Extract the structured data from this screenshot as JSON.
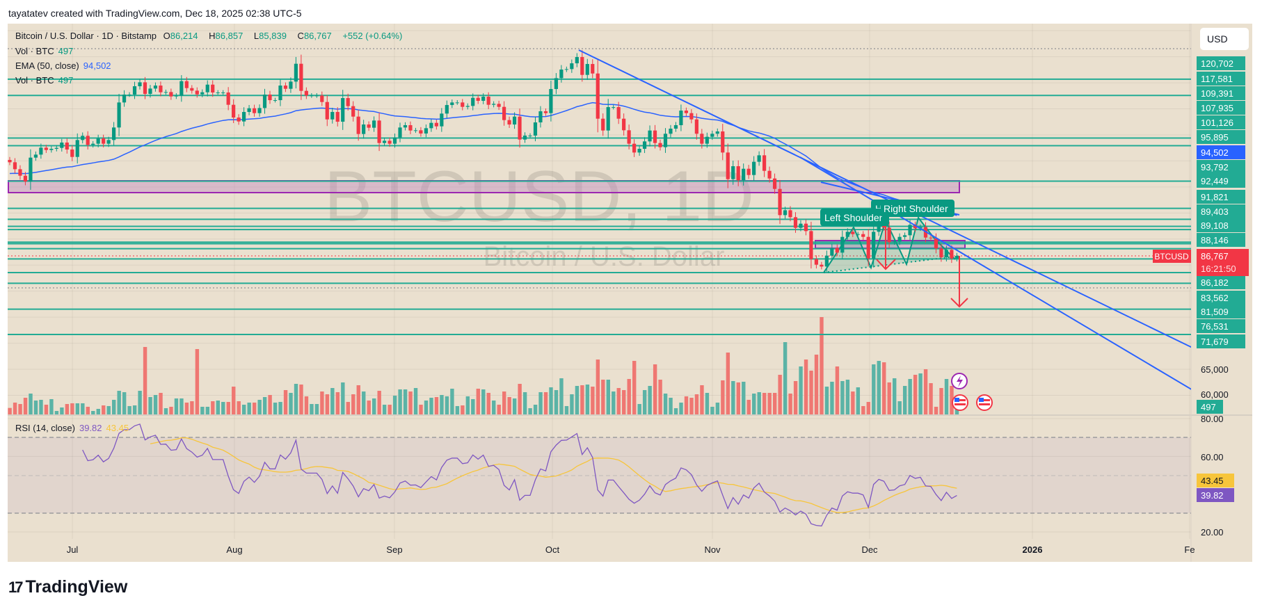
{
  "header": {
    "attribution": "tayatatev created with TradingView.com, Dec 18, 2025 02:38 UTC-5"
  },
  "legend": {
    "symbol": "Bitcoin / U.S. Dollar · 1D · Bitstamp",
    "open_label": "O",
    "open": "86,214",
    "high_label": "H",
    "high": "86,857",
    "low_label": "L",
    "low": "85,839",
    "close_label": "C",
    "close": "86,767",
    "change": "+552 (+0.64%)",
    "vol_label": "Vol · BTC",
    "vol_value": "497",
    "ema_label": "EMA (50, close)",
    "ema_value": "94,502",
    "vol2_label": "Vol · BTC",
    "vol2_value": "497",
    "rsi_label": "RSI (14, close)",
    "rsi_value": "39.82",
    "rsi_ma_value": "43.45"
  },
  "currency_button": "USD",
  "watermark": {
    "symbol": "BTCUSD, 1D",
    "name": "Bitcoin / U.S. Dollar"
  },
  "symbol_tag": "BTCUSD",
  "countdown": "16:21:50",
  "colors": {
    "background": "#eae0cf",
    "up": "#089981",
    "down": "#f23645",
    "level_line": "#22ab94",
    "ema": "#2962ff",
    "trendline": "#2962ff",
    "zone": "#9c27b0",
    "rsi": "#7e57c2",
    "rsi_ma": "#f7c53b"
  },
  "price_axis": {
    "levels": [
      "120,702",
      "117,581",
      "109,391",
      "107,935",
      "101,126",
      "95,895",
      "93,792",
      "92,449",
      "91,821",
      "89,403",
      "89,108",
      "88,146",
      "86,182",
      "83,562",
      "81,509",
      "76,531",
      "71,679"
    ],
    "ema_label": "94,502",
    "current_price": "86,767",
    "ticks": [
      "65,000",
      "60,000"
    ],
    "volume_label": "497"
  },
  "rsi_axis": {
    "ticks": [
      "80.00",
      "60.00",
      "20.00"
    ],
    "ma_label": "43.45",
    "rsi_label": "39.82"
  },
  "time_axis": [
    "Jul",
    "Aug",
    "Sep",
    "Oct",
    "Nov",
    "Dec",
    "2026",
    "Fe"
  ],
  "pattern_labels": {
    "left_shoulder": "Left Shoulder",
    "head": "H",
    "right_shoulder": "Right Shoulder"
  },
  "icons": [
    "lightning-event-icon",
    "us-flag-icon",
    "us-flag-icon"
  ],
  "footer": {
    "brand": "TradingView"
  },
  "chart_data": {
    "type": "candlestick",
    "symbol": "BTCUSD",
    "interval": "1D",
    "start_date": "2025-06-19",
    "end_date": "2025-12-18",
    "first_open": 105190,
    "close": [
      104745,
      103410,
      102164,
      101051,
      105635,
      106213,
      107548,
      107103,
      107326,
      107504,
      108527,
      107192,
      105768,
      109017,
      109818,
      108082,
      108305,
      109328,
      108305,
      109017,
      111420,
      116226,
      117739,
      117739,
      119341,
      120097,
      117872,
      118896,
      119474,
      118184,
      118228,
      117383,
      117516,
      120320,
      118985,
      118495,
      117783,
      118184,
      119652,
      118139,
      118139,
      118139,
      115781,
      113333,
      112577,
      114401,
      115113,
      114179,
      115158,
      117739,
      116671,
      116671,
      119474,
      118851,
      120231,
      123657,
      118451,
      117561,
      117561,
      117561,
      116315,
      112977,
      114401,
      112532,
      117071,
      115514,
      113511,
      110174,
      111998,
      111375,
      112755,
      108438,
      108883,
      108305,
      109506,
      111420,
      111865,
      110841,
      110886,
      110263,
      111286,
      112310,
      111642,
      114090,
      115736,
      116226,
      116226,
      115380,
      115558,
      117116,
      116537,
      117338,
      115781,
      115959,
      115380,
      112844,
      111998,
      113511,
      109106,
      109862,
      109862,
      112399,
      114535,
      114179,
      118807,
      120898,
      122545,
      122634,
      123746,
      124948,
      121521,
      123613,
      121788,
      113111,
      110841,
      115336,
      115336,
      113111,
      110886,
      108305,
      106614,
      107326,
      108750,
      110841,
      108438,
      107637,
      110218,
      111197,
      111865,
      114668,
      114179,
      112977,
      110218,
      108305,
      109640,
      110218,
      110663,
      106614,
      101496,
      103988,
      101274,
      103499,
      102297,
      104834,
      106080,
      103098,
      101630,
      99627,
      94599,
      95533,
      94198,
      92151,
      92952,
      91528,
      86144,
      85076,
      84720,
      86811,
      88280,
      87390,
      90416,
      91395,
      90950,
      90950,
      90416,
      86277,
      91395,
      92730,
      92196,
      89392,
      89526,
      90416,
      90727,
      92730,
      92062,
      92285,
      90282,
      90149,
      88191,
      86500,
      87924,
      86277,
      86767
    ],
    "volume": [
      325,
      592,
      522,
      835,
      1044,
      696,
      731,
      487,
      766,
      174,
      348,
      522,
      557,
      557,
      557,
      383,
      174,
      278,
      452,
      418,
      731,
      1183,
      1114,
      418,
      452,
      1183,
      3376,
      870,
      974,
      1079,
      313,
      383,
      800,
      800,
      592,
      661,
      3271,
      383,
      383,
      661,
      696,
      626,
      626,
      1392,
      661,
      487,
      592,
      592,
      731,
      870,
      974,
      592,
      626,
      1218,
      1079,
      1531,
      1496,
      905,
      522,
      522,
      1148,
      1009,
      1322,
      1114,
      1601,
      626,
      1009,
      1462,
      1148,
      696,
      800,
      1183,
      487,
      487,
      940,
      1253,
      1253,
      1148,
      1322,
      487,
      696,
      835,
      870,
      974,
      905,
      1288,
      418,
      452,
      905,
      766,
      1288,
      1253,
      1079,
      696,
      487,
      1148,
      870,
      800,
      1531,
      1114,
      313,
      487,
      1114,
      1114,
      1357,
      1218,
      1810,
      418,
      1009,
      1427,
      1462,
      1496,
      1392,
      2749,
      1740,
      1740,
      1148,
      1322,
      1218,
      1775,
      2680,
      522,
      1218,
      1427,
      2506,
      1740,
      1044,
      835,
      313,
      592,
      905,
      835,
      1009,
      1462,
      1079,
      383,
      592,
      1705,
      3097,
      1670,
      1601,
      1636,
      731,
      1044,
      1114,
      1079,
      1079,
      1079,
      1984,
      3619,
      1044,
      1670,
      2401,
      2749,
      2192,
      2993,
      4872,
      1392,
      1636,
      2401,
      1670,
      1740,
      1148,
      1357,
      418,
      626,
      2506,
      2680,
      2610,
      1601,
      1810,
      661,
      1427,
      1775,
      1984,
      2053,
      2262,
      1566,
      383,
      1322,
      1775,
      1427,
      497
    ],
    "level_prices": [
      120702,
      117581,
      109391,
      107935,
      101126,
      95895,
      93792,
      92449,
      91821,
      89403,
      89108,
      88146,
      86182,
      83562,
      81509,
      76531,
      71679
    ],
    "zone": {
      "from": 98900,
      "to": 101200
    },
    "indicators": [
      "EMA 50 (close)",
      "Volume",
      "RSI 14 (close) with MA 14"
    ],
    "rsi_bands": [
      70,
      30
    ],
    "rsi_ylim": [
      20,
      80
    ],
    "price_scale": "linear",
    "grid": true
  }
}
